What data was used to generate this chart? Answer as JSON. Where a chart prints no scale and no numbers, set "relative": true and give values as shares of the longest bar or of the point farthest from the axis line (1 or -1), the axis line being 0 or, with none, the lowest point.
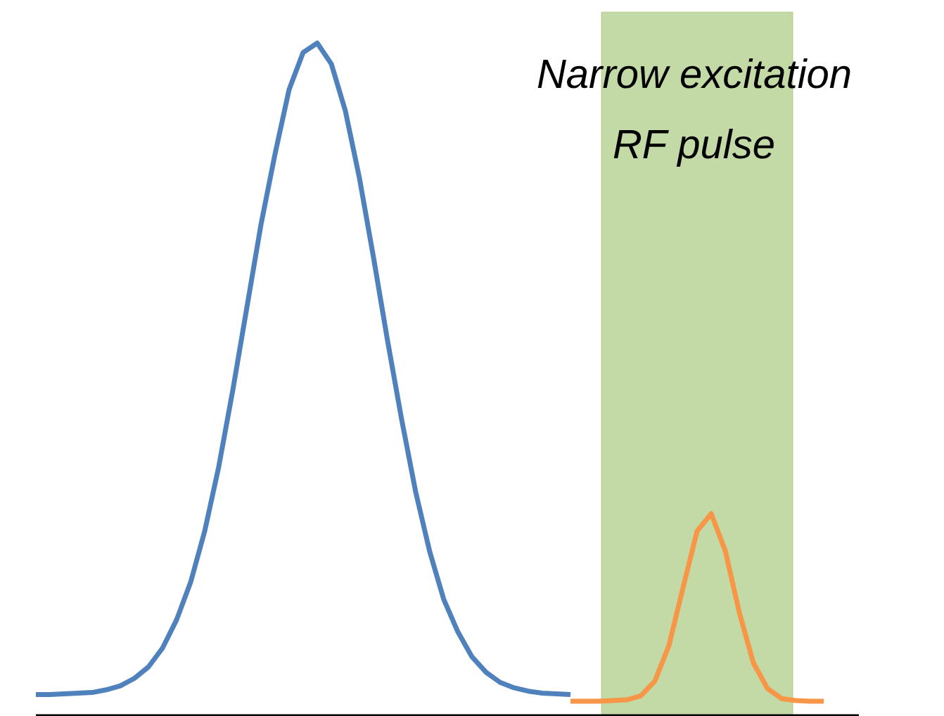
{
  "chart_data": {
    "type": "line",
    "relative": true,
    "tick_labels": false,
    "grid": false,
    "line_style": "solid",
    "categories": [
      null,
      null,
      null,
      null,
      null,
      null,
      null,
      null,
      null,
      null,
      null,
      null,
      null,
      null,
      null,
      null,
      null,
      null,
      null,
      null,
      null,
      null,
      null,
      null,
      null,
      null,
      null,
      null,
      null,
      null,
      null,
      null,
      null,
      null,
      null,
      null,
      null,
      null,
      null,
      null,
      null,
      null,
      null,
      null,
      null,
      null,
      null,
      null,
      null,
      null,
      null,
      null,
      null,
      null,
      null,
      null,
      null
    ],
    "series": [
      {
        "color": "#4f81bd",
        "values": [
          0.031,
          0.031,
          0.032,
          0.033,
          0.034,
          0.038,
          0.044,
          0.055,
          0.072,
          0.1,
          0.142,
          0.198,
          0.274,
          0.37,
          0.484,
          0.607,
          0.73,
          0.835,
          0.931,
          0.986,
          1.0,
          0.969,
          0.899,
          0.799,
          0.681,
          0.557,
          0.44,
          0.332,
          0.243,
          0.172,
          0.124,
          0.087,
          0.064,
          0.049,
          0.041,
          0.036,
          0.033,
          0.032,
          0.031,
          null,
          null,
          null,
          null,
          null,
          null,
          null,
          null,
          null,
          null,
          null,
          null,
          null,
          null,
          null,
          null,
          null,
          null
        ]
      },
      {
        "color": "#f79646",
        "values": [
          null,
          null,
          null,
          null,
          null,
          null,
          null,
          null,
          null,
          null,
          null,
          null,
          null,
          null,
          null,
          null,
          null,
          null,
          null,
          null,
          null,
          null,
          null,
          null,
          null,
          null,
          null,
          null,
          null,
          null,
          null,
          null,
          null,
          null,
          null,
          null,
          null,
          null,
          0.021,
          0.021,
          0.021,
          0.022,
          0.023,
          0.029,
          0.051,
          0.104,
          0.19,
          0.274,
          0.3,
          0.245,
          0.153,
          0.078,
          0.04,
          0.025,
          0.022,
          0.021,
          0.021
        ]
      }
    ],
    "annotations": [
      "Narrow excitation\nRF pulse"
    ]
  }
}
